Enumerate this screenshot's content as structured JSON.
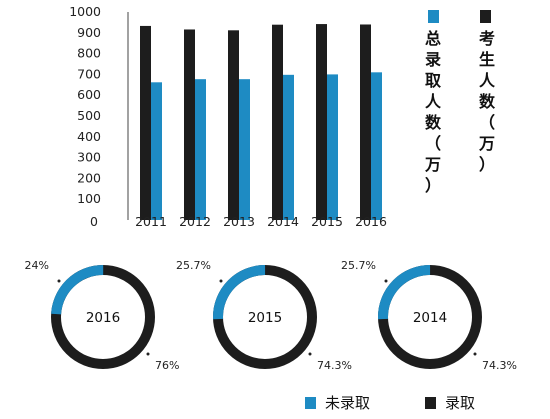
{
  "colors": {
    "blue": "#1e8bc3",
    "black": "#1d1d1d"
  },
  "chart_data": [
    {
      "type": "bar",
      "categories": [
        "2011",
        "2012",
        "2013",
        "2014",
        "2015",
        "2016"
      ],
      "series": [
        {
          "name": "考生人数（万）",
          "color": "#1d1d1d",
          "values": [
            933,
            916,
            912,
            939,
            942,
            940
          ]
        },
        {
          "name": "总录取人数（万）",
          "color": "#1e8bc3",
          "values": [
            662,
            677,
            677,
            698,
            700,
            710
          ]
        }
      ],
      "ylim": [
        0,
        1000
      ],
      "yticks": [
        0,
        100,
        200,
        300,
        400,
        500,
        600,
        700,
        800,
        900,
        1000
      ],
      "grid": false,
      "legend_position": "right"
    },
    {
      "type": "pie",
      "style": "donut",
      "charts": [
        {
          "center_label": "2016",
          "slices": [
            {
              "name": "未录取",
              "value": 24,
              "label": "24%"
            },
            {
              "name": "录取",
              "value": 76,
              "label": "76%"
            }
          ]
        },
        {
          "center_label": "2015",
          "slices": [
            {
              "name": "未录取",
              "value": 25.7,
              "label": "25.7%"
            },
            {
              "name": "录取",
              "value": 74.3,
              "label": "74.3%"
            }
          ]
        },
        {
          "center_label": "2014",
          "slices": [
            {
              "name": "未录取",
              "value": 25.7,
              "label": "25.7%"
            },
            {
              "name": "录取",
              "value": 74.3,
              "label": "74.3%"
            }
          ]
        }
      ],
      "legend": [
        {
          "name": "未录取",
          "color": "#1e8bc3"
        },
        {
          "name": "录取",
          "color": "#1d1d1d"
        }
      ],
      "legend_position": "bottom-right"
    }
  ]
}
